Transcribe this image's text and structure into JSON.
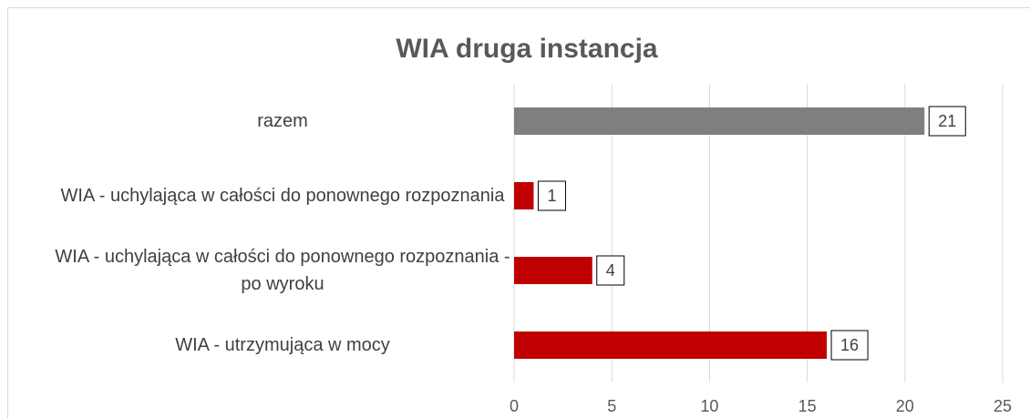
{
  "chart_data": {
    "type": "bar",
    "orientation": "horizontal",
    "title": "WIA druga instancja",
    "categories": [
      "razem",
      "WIA - uchylająca w całości do ponownego rozpoznania",
      "WIA - uchylająca w całości do ponownego rozpoznania - po wyroku",
      "WIA - utrzymująca w mocy"
    ],
    "values": [
      21,
      1,
      4,
      16
    ],
    "colors": [
      "#7f7f7f",
      "#c00000",
      "#c00000",
      "#c00000"
    ],
    "xlim": [
      0,
      25
    ],
    "xticks": [
      0,
      5,
      10,
      15,
      20,
      25
    ],
    "grid": true
  }
}
